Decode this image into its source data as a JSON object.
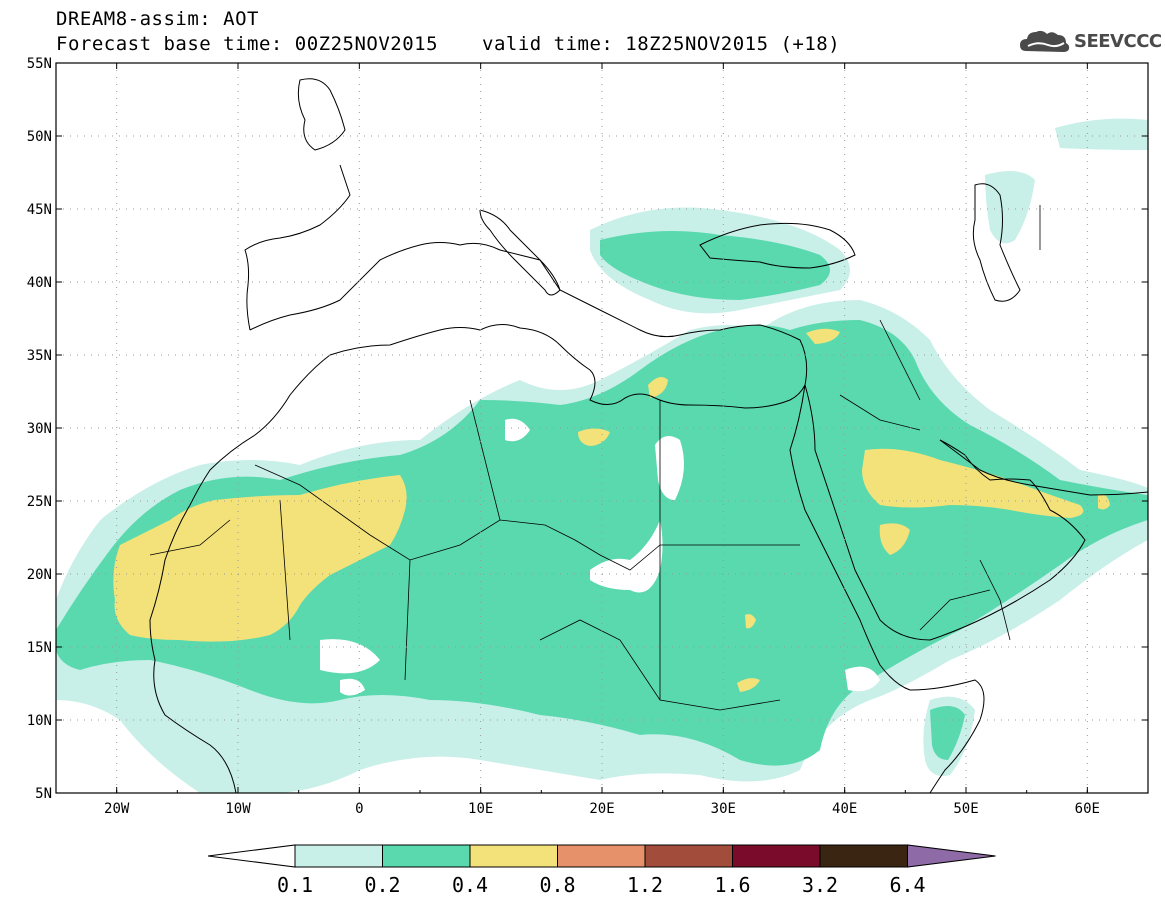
{
  "header": {
    "title": "DREAM8-assim: AOT",
    "base_time": "Forecast base time: 00Z25NOV2015",
    "valid_time": "valid time: 18Z25NOV2015 (+18)"
  },
  "logo": {
    "text": "SEEVCCC",
    "icon": "cloud-icon"
  },
  "map": {
    "lon_range": [
      -25,
      65
    ],
    "lat_range": [
      5,
      55
    ],
    "lat_labels": [
      "5N",
      "10N",
      "15N",
      "20N",
      "25N",
      "30N",
      "35N",
      "40N",
      "45N",
      "50N",
      "55N"
    ],
    "lon_labels": [
      "20W",
      "10W",
      "0",
      "10E",
      "20E",
      "30E",
      "40E",
      "50E",
      "60E"
    ],
    "grid": "dotted"
  },
  "colorbar": {
    "labels": [
      "0.1",
      "0.2",
      "0.4",
      "0.8",
      "1.2",
      "1.6",
      "3.2",
      "6.4"
    ],
    "colors": [
      "#ffffff",
      "#c8efe8",
      "#5ad9ae",
      "#f3e27a",
      "#e6916a",
      "#a24d3c",
      "#7a0b2a",
      "#3a2412",
      "#8e6aa7"
    ]
  }
}
